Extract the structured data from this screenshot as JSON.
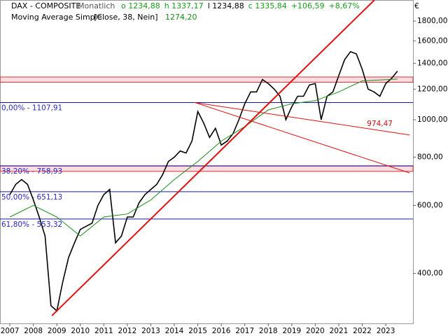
{
  "chart_data": {
    "type": "line",
    "title": "DAX - COMPOSITE",
    "period": "Monatlich",
    "ohlc_text": [
      {
        "label": "o 1234,88",
        "color": "#1a9c1a"
      },
      {
        "label": "h 1337,17",
        "color": "#1a9c1a"
      },
      {
        "label": "l 1234,88",
        "color": "#000000"
      },
      {
        "label": "c 1335,84",
        "color": "#1a9c1a"
      },
      {
        "label": "+106,59",
        "color": "#1a9c1a"
      },
      {
        "label": "+8,67%",
        "color": "#1a9c1a"
      }
    ],
    "indicator_label": "Moving Average Simple",
    "indicator_params": "[Close, 38, Nein]",
    "indicator_value": "1274,20",
    "currency": "€",
    "log_scale": true,
    "xlim": [
      2006.58,
      2024.16
    ],
    "xticks": [
      2007,
      2008,
      2009,
      2010,
      2011,
      2012,
      2013,
      2014,
      2015,
      2016,
      2017,
      2018,
      2019,
      2020,
      2021,
      2022,
      2023
    ],
    "ylim": [
      297,
      2041
    ],
    "yticks": [
      {
        "value": 400,
        "label": "400,00"
      },
      {
        "value": 600,
        "label": "600,00"
      },
      {
        "value": 800,
        "label": "800,00"
      },
      {
        "value": 1000,
        "label": "1000,00"
      },
      {
        "value": 1200,
        "label": "1200,00"
      },
      {
        "value": 1400,
        "label": "1400,00"
      },
      {
        "value": 1600,
        "label": "1600,00"
      },
      {
        "value": 1800,
        "label": "1800,00"
      }
    ],
    "series": [
      {
        "name": "DAX - COMPOSITE",
        "color": "#000000",
        "x": [
          2007.0,
          2007.25,
          2007.5,
          2007.75,
          2008.0,
          2008.25,
          2008.5,
          2008.75,
          2009.0,
          2009.25,
          2009.5,
          2009.75,
          2010.0,
          2010.25,
          2010.5,
          2010.75,
          2011.0,
          2011.25,
          2011.5,
          2011.75,
          2012.0,
          2012.25,
          2012.5,
          2012.75,
          2013.0,
          2013.25,
          2013.5,
          2013.75,
          2014.0,
          2014.25,
          2014.5,
          2014.75,
          2015.0,
          2015.25,
          2015.5,
          2015.75,
          2016.0,
          2016.25,
          2016.5,
          2016.75,
          2017.0,
          2017.25,
          2017.5,
          2017.75,
          2018.0,
          2018.25,
          2018.5,
          2018.75,
          2019.0,
          2019.25,
          2019.5,
          2019.75,
          2020.0,
          2020.25,
          2020.5,
          2020.75,
          2021.0,
          2021.25,
          2021.5,
          2021.75,
          2022.0,
          2022.25,
          2022.5,
          2022.75,
          2023.0,
          2023.25,
          2023.5
        ],
        "values": [
          640,
          680,
          700,
          680,
          620,
          560,
          500,
          330,
          320,
          380,
          440,
          480,
          520,
          530,
          540,
          600,
          640,
          660,
          480,
          500,
          560,
          560,
          610,
          640,
          660,
          680,
          720,
          780,
          800,
          830,
          820,
          880,
          1050,
          980,
          900,
          950,
          860,
          880,
          920,
          1000,
          1100,
          1180,
          1180,
          1270,
          1240,
          1200,
          1150,
          1000,
          1080,
          1150,
          1150,
          1230,
          1240,
          1000,
          1150,
          1180,
          1300,
          1430,
          1500,
          1480,
          1350,
          1200,
          1180,
          1150,
          1240,
          1280,
          1335.84
        ]
      },
      {
        "name": "Moving Average Simple",
        "color": "#1a8c1a",
        "x": [
          2007.0,
          2008.0,
          2009.0,
          2010.0,
          2011.0,
          2012.0,
          2013.0,
          2014.0,
          2015.0,
          2016.0,
          2017.0,
          2018.0,
          2019.0,
          2020.0,
          2021.0,
          2022.0,
          2023.5
        ],
        "values": [
          560,
          600,
          560,
          500,
          560,
          570,
          620,
          700,
          780,
          880,
          960,
          1060,
          1100,
          1120,
          1180,
          1260,
          1274.2
        ]
      }
    ],
    "hlines": [
      {
        "value": 1107.91,
        "label": "0,00% - 1107,91"
      },
      {
        "value": 758.93,
        "label": "38,20% - 758,93"
      },
      {
        "value": 651.13,
        "label": "50,00% - 651,13"
      },
      {
        "value": 553.32,
        "label": "61,80% - 553,32"
      }
    ],
    "bands": [
      {
        "from": 1250,
        "to": 1290
      },
      {
        "from": 735,
        "to": 760
      }
    ],
    "trendlines": [
      {
        "x": [
          2008.79,
          2022.52
        ],
        "y": [
          311,
          2041
        ],
        "width": 2
      },
      {
        "x": [
          2014.87,
          2024.02
        ],
        "y": [
          1107.91,
          913
        ],
        "width": 1
      },
      {
        "x": [
          2014.87,
          2024.02
        ],
        "y": [
          1107.91,
          728
        ],
        "width": 1
      }
    ],
    "annotation": {
      "label": "974,47",
      "x": 2022.2,
      "y": 974.47
    }
  }
}
